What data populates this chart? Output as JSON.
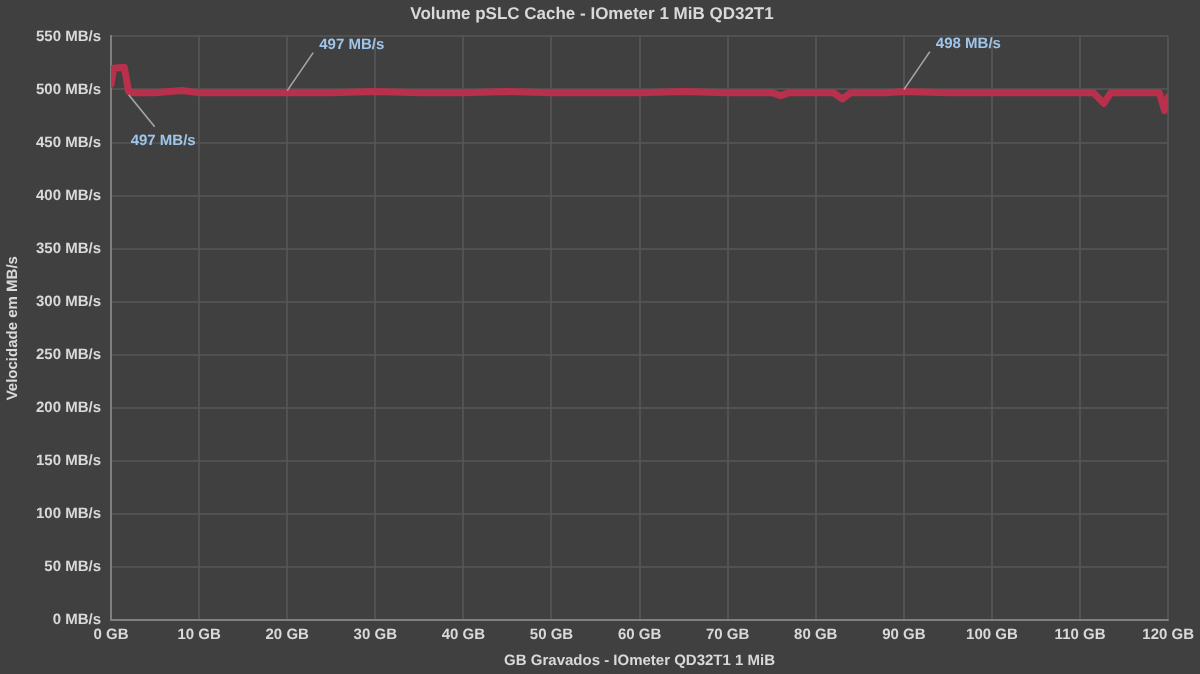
{
  "chart_data": {
    "type": "line",
    "title": "Volume pSLC Cache - IOmeter 1 MiB QD32T1",
    "xlabel": "GB Gravados - IOmeter QD32T1 1 MiB",
    "ylabel": "Velocidade em MB/s",
    "series": [
      {
        "color": "#b8304c",
        "x": [
          0,
          0.3,
          1.5,
          2,
          2.5,
          5,
          8,
          10,
          15,
          20,
          25,
          30,
          35,
          40,
          45,
          50,
          55,
          60,
          65,
          70,
          75,
          76,
          77,
          80,
          82,
          83,
          84,
          88,
          90,
          95,
          100,
          105,
          110,
          111.5,
          112.7,
          113.5,
          116,
          119,
          119.6,
          120
        ],
        "values": [
          505,
          520,
          521,
          498,
          497,
          497,
          499,
          497,
          497,
          497,
          497,
          498,
          497,
          497,
          498,
          497,
          497,
          497,
          498,
          497,
          497,
          494,
          497,
          497,
          497,
          491,
          497,
          497,
          498,
          497,
          497,
          497,
          497,
          497,
          487,
          497,
          497,
          497,
          480,
          493
        ]
      }
    ],
    "xlim": [
      0,
      120
    ],
    "xticks": [
      {
        "value": 0,
        "label": "0 GB"
      },
      {
        "value": 10,
        "label": "10 GB"
      },
      {
        "value": 20,
        "label": "20 GB"
      },
      {
        "value": 30,
        "label": "30 GB"
      },
      {
        "value": 40,
        "label": "40 GB"
      },
      {
        "value": 50,
        "label": "50 GB"
      },
      {
        "value": 60,
        "label": "60 GB"
      },
      {
        "value": 70,
        "label": "70 GB"
      },
      {
        "value": 80,
        "label": "80 GB"
      },
      {
        "value": 90,
        "label": "90 GB"
      },
      {
        "value": 100,
        "label": "100 GB"
      },
      {
        "value": 110,
        "label": "110 GB"
      },
      {
        "value": 120,
        "label": "120 GB"
      }
    ],
    "ylim": [
      0,
      550
    ],
    "yticks": [
      {
        "value": 0,
        "label": "0 MB/s"
      },
      {
        "value": 50,
        "label": "50 MB/s"
      },
      {
        "value": 100,
        "label": "100 MB/s"
      },
      {
        "value": 150,
        "label": "150 MB/s"
      },
      {
        "value": 200,
        "label": "200 MB/s"
      },
      {
        "value": 250,
        "label": "250 MB/s"
      },
      {
        "value": 300,
        "label": "300 MB/s"
      },
      {
        "value": 350,
        "label": "350 MB/s"
      },
      {
        "value": 400,
        "label": "400 MB/s"
      },
      {
        "value": 450,
        "label": "450 MB/s"
      },
      {
        "value": 500,
        "label": "500 MB/s"
      },
      {
        "value": 550,
        "label": "550 MB/s"
      }
    ],
    "annotations": [
      {
        "text": "497 MB/s",
        "x": 2,
        "y": 497
      },
      {
        "text": "497 MB/s",
        "x": 20,
        "y": 497
      },
      {
        "text": "498 MB/s",
        "x": 90,
        "y": 498
      }
    ],
    "grid": true,
    "legend": false,
    "marker": "none",
    "line_style": "solid"
  }
}
